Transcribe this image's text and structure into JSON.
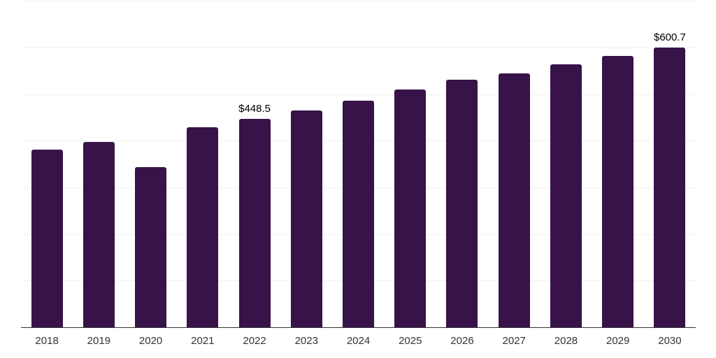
{
  "chart_data": {
    "type": "bar",
    "title": "",
    "xlabel": "",
    "ylabel": "",
    "categories": [
      "2018",
      "2019",
      "2020",
      "2021",
      "2022",
      "2023",
      "2024",
      "2025",
      "2026",
      "2027",
      "2028",
      "2029",
      "2030"
    ],
    "values": [
      383.0,
      398.5,
      344.5,
      431.0,
      448.5,
      467.0,
      487.5,
      511.0,
      532.5,
      546.5,
      564.5,
      583.5,
      600.7
    ],
    "value_prefix": "$",
    "data_labels": [
      {
        "category": "2022",
        "text": "$448.5"
      },
      {
        "category": "2030",
        "text": "$600.7"
      }
    ],
    "ylim": [
      0,
      700
    ],
    "gridline_step": 100,
    "grid": "horizontal",
    "legend_position": "none",
    "colors": {
      "bar": "#371349",
      "gridline": "#f0f0f2",
      "axis_line": "#333333",
      "tick_label": "#333333",
      "data_label": "#000000",
      "background": "#ffffff"
    }
  }
}
